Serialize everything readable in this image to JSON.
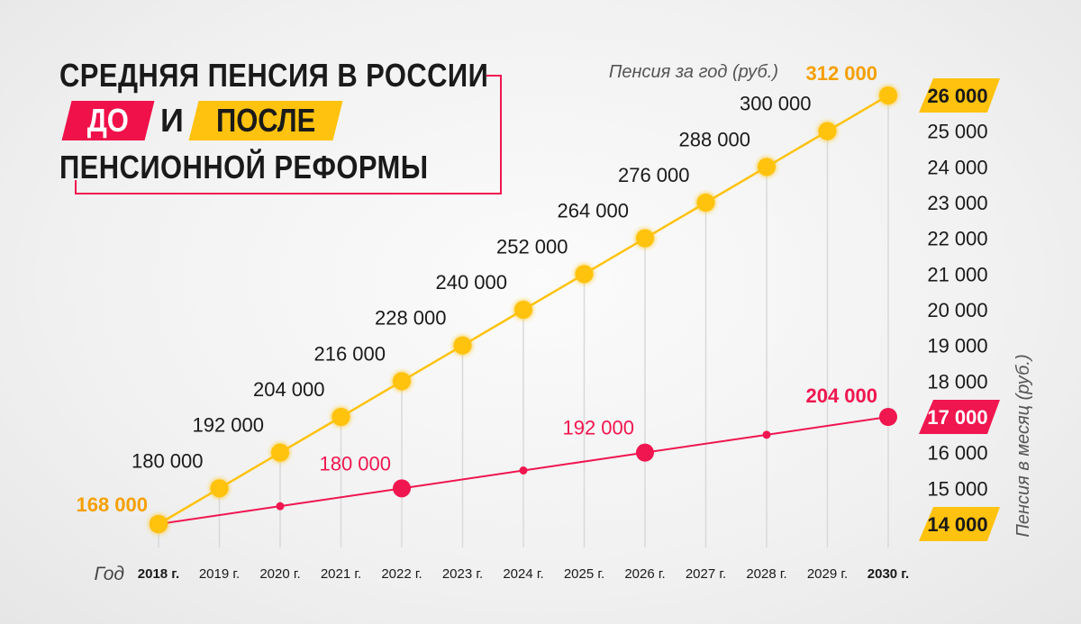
{
  "title": {
    "line1": "СРЕДНЯЯ ПЕНСИЯ В РОССИИ",
    "tag_before": "ДО",
    "conj": "И",
    "tag_after": "ПОСЛЕ",
    "line3": "ПЕНСИОННОЙ РЕФОРМЫ"
  },
  "colors": {
    "yearly": "#ffc20e",
    "monthly": "#f0164f",
    "grid": "#d9d9d9",
    "text": "#1a1a1a",
    "orange_label": "#f5a000"
  },
  "chart_data": {
    "type": "line",
    "xlabel": "Год",
    "x": [
      "2018 г.",
      "2019 г.",
      "2020 г.",
      "2021 г.",
      "2022 г.",
      "2023 г.",
      "2024 г.",
      "2025 г.",
      "2026 г.",
      "2027 г.",
      "2028 г.",
      "2029 г.",
      "2030 г."
    ],
    "bold_ticks": [
      "2018 г.",
      "2030 г."
    ],
    "ylabel_top": "Пенсия за год (руб.)",
    "ylabel_right": "Пенсия в месяц (руб.)",
    "ylim": [
      14000,
      26000
    ],
    "y_ticks": [
      "14 000",
      "15 000",
      "16 000",
      "17 000",
      "18 000",
      "19 000",
      "20 000",
      "21 000",
      "22 000",
      "23 000",
      "24 000",
      "25 000",
      "26 000"
    ],
    "highlight_ticks": [
      {
        "label": "26 000",
        "color": "yellow"
      },
      {
        "label": "17 000",
        "color": "red"
      },
      {
        "label": "14 000",
        "color": "yellow"
      }
    ],
    "series": [
      {
        "key": "yearly",
        "values": [
          168000,
          180000,
          192000,
          204000,
          216000,
          228000,
          240000,
          252000,
          264000,
          276000,
          288000,
          300000,
          312000
        ],
        "labels": [
          "168 000",
          "180 000",
          "192 000",
          "204 000",
          "216 000",
          "228 000",
          "240 000",
          "252 000",
          "264 000",
          "276 000",
          "288 000",
          "300 000",
          "312 000"
        ],
        "monthly_equiv": [
          14000,
          15000,
          16000,
          17000,
          18000,
          19000,
          20000,
          21000,
          22000,
          23000,
          24000,
          25000,
          26000
        ]
      },
      {
        "key": "monthly_line",
        "points": [
          {
            "x": "2018 г.",
            "value": 168000,
            "monthly_equiv": 14000,
            "size": "big"
          },
          {
            "x": "2020 г.",
            "value": 174000,
            "monthly_equiv": 14500,
            "size": "small"
          },
          {
            "x": "2022 г.",
            "value": 180000,
            "monthly_equiv": 15000,
            "size": "big",
            "label": "180 000"
          },
          {
            "x": "2024 г.",
            "value": 186000,
            "monthly_equiv": 15500,
            "size": "small"
          },
          {
            "x": "2026 г.",
            "value": 192000,
            "monthly_equiv": 16000,
            "size": "big",
            "label": "192 000"
          },
          {
            "x": "2028 г.",
            "value": 198000,
            "monthly_equiv": 16500,
            "size": "small"
          },
          {
            "x": "2030 г.",
            "value": 204000,
            "monthly_equiv": 17000,
            "size": "big",
            "label": "204 000"
          }
        ]
      }
    ]
  }
}
